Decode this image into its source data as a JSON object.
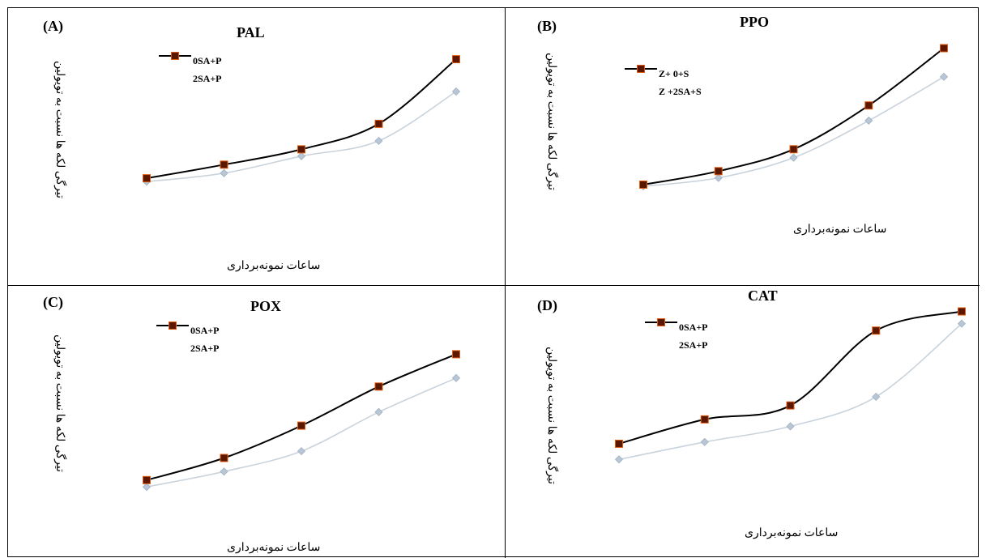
{
  "colors": {
    "series_light": "#c9d3dc",
    "series_dark": "#000000",
    "marker_light": "#b8c7d6",
    "marker_dark_fill": "#5a1800",
    "marker_dark_edge": "#e05a10"
  },
  "chart_data": [
    {
      "type": "line",
      "tag": "(A)",
      "title": "PAL",
      "xlabel": "ساعات نمونه‌برداری",
      "ylabel": "تیرگی لکه ها نسبت به تویولین",
      "x": [
        1,
        2,
        3,
        4,
        5
      ],
      "ylim": [
        0,
        100
      ],
      "grid": false,
      "legend_position": "top-left",
      "series": [
        {
          "name": "0SA+P",
          "values": [
            17,
            22,
            32,
            41,
            70
          ],
          "style": "light"
        },
        {
          "name": "2SA+P",
          "values": [
            19,
            27,
            36,
            51,
            89
          ],
          "style": "dark"
        }
      ]
    },
    {
      "type": "line",
      "tag": "(B)",
      "title": "PPO",
      "xlabel": "ساعات نمونه‌برداری",
      "ylabel": "تیرگی لکه ها نسبت به تویولین",
      "x": [
        1,
        2,
        3,
        4,
        5
      ],
      "ylim": [
        0,
        100
      ],
      "grid": false,
      "legend_position": "top-left",
      "series": [
        {
          "name": "Z+ 0+S",
          "values": [
            12,
            17,
            29,
            51,
            77
          ],
          "style": "light"
        },
        {
          "name": "Z +2SA+S",
          "values": [
            13,
            21,
            34,
            60,
            94
          ],
          "style": "dark"
        }
      ]
    },
    {
      "type": "line",
      "tag": "(C)",
      "title": "POX",
      "xlabel": "ساعات نمونه‌برداری",
      "ylabel": "تیرگی لکه ها نسبت به تویولین",
      "x": [
        1,
        2,
        3,
        4,
        5
      ],
      "ylim": [
        0,
        100
      ],
      "grid": false,
      "legend_position": "top-left",
      "series": [
        {
          "name": "0SA+P",
          "values": [
            8,
            17,
            29,
            52,
            72
          ],
          "style": "light"
        },
        {
          "name": "2SA+P",
          "values": [
            12,
            25,
            44,
            67,
            86
          ],
          "style": "dark"
        }
      ]
    },
    {
      "type": "line",
      "tag": "(D)",
      "title": "CAT",
      "xlabel": "ساعات نمونه‌برداری",
      "ylabel": "تیرگی لکه ها نسبت به تویولین",
      "x": [
        1,
        2,
        3,
        4,
        5
      ],
      "ylim": [
        0,
        100
      ],
      "grid": false,
      "legend_position": "top-left",
      "series": [
        {
          "name": "0SA+P",
          "values": [
            18,
            28,
            37,
            54,
            96
          ],
          "style": "light"
        },
        {
          "name": "2SA+P",
          "values": [
            27,
            41,
            49,
            92,
            103
          ],
          "style": "dark"
        }
      ]
    }
  ]
}
